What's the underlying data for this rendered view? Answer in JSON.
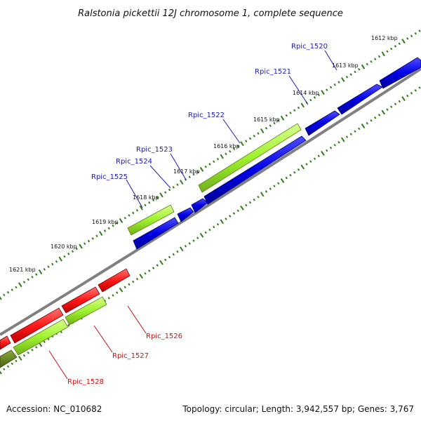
{
  "title": "Ralstonia pickettii 12J chromosome 1, complete sequence",
  "footer": {
    "accession": "Accession: NC_010682",
    "summary": "Topology: circular; Length: 3,942,557 bp; Genes: 3,767"
  },
  "colors": {
    "backbone": "#808080",
    "tick": "#2e7d16",
    "forward_cds": "#0000e6",
    "reverse_cds": "#ff1a1a",
    "gene": "#9ff22e",
    "gene_dark": "#5a7a16",
    "forward_label": "#1a1ab8",
    "reverse_label": "#cc1111"
  },
  "scale_labels": [
    "1612 kbp",
    "1613 kbp",
    "1614 kbp",
    "1615 kbp",
    "1616 kbp",
    "1617 kbp",
    "1618 kbp",
    "1619 kbp",
    "1620 kbp",
    "1621 kbp"
  ],
  "forward_genes": [
    "Rpic_1520",
    "Rpic_1521",
    "Rpic_1522",
    "Rpic_1523",
    "Rpic_1524",
    "Rpic_1525"
  ],
  "reverse_genes": [
    "Rpic_1526",
    "Rpic_1527",
    "Rpic_1528"
  ]
}
